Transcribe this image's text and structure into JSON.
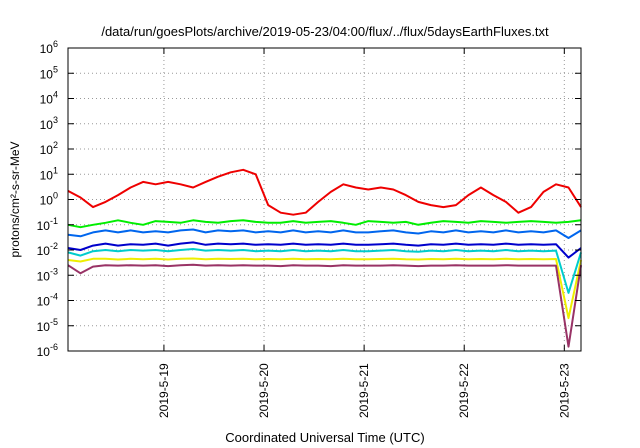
{
  "chart_data": {
    "type": "line",
    "title": "/data/run/goesPlots/archive/2019-05-23/04:00/flux/../flux/5daysEarthFluxes.txt",
    "ylabel": "protons/cm²-s-sr-MeV",
    "xlabel": "Coordinated Universal Time (UTC)",
    "y_scale": "log",
    "ylim": [
      1e-06,
      1000000.0
    ],
    "xlim": [
      "2019-05-18T01:00",
      "2019-05-23T04:00"
    ],
    "yticks": [
      {
        "value": 1e-06,
        "base": "10",
        "exp": "-6"
      },
      {
        "value": 1e-05,
        "base": "10",
        "exp": "-5"
      },
      {
        "value": 0.0001,
        "base": "10",
        "exp": "-4"
      },
      {
        "value": 0.001,
        "base": "10",
        "exp": "-3"
      },
      {
        "value": 0.01,
        "base": "10",
        "exp": "-2"
      },
      {
        "value": 0.1,
        "base": "10",
        "exp": "-1"
      },
      {
        "value": 1,
        "base": "10",
        "exp": "0"
      },
      {
        "value": 10.0,
        "base": "10",
        "exp": "1"
      },
      {
        "value": 100.0,
        "base": "10",
        "exp": "2"
      },
      {
        "value": 1000.0,
        "base": "10",
        "exp": "3"
      },
      {
        "value": 10000.0,
        "base": "10",
        "exp": "4"
      },
      {
        "value": 100000.0,
        "base": "10",
        "exp": "5"
      },
      {
        "value": 1000000.0,
        "base": "10",
        "exp": "6"
      }
    ],
    "xticks": [
      {
        "value": "2019-05-19T00:00",
        "label": "2019-5-19"
      },
      {
        "value": "2019-05-20T00:00",
        "label": "2019-5-20"
      },
      {
        "value": "2019-05-21T00:00",
        "label": "2019-5-21"
      },
      {
        "value": "2019-05-22T00:00",
        "label": "2019-5-22"
      },
      {
        "value": "2019-05-23T00:00",
        "label": "2019-5-23"
      }
    ],
    "grid": true,
    "legend": "none",
    "x": [
      "2019-05-18T01:00",
      "2019-05-18T04:00",
      "2019-05-18T07:00",
      "2019-05-18T10:00",
      "2019-05-18T13:00",
      "2019-05-18T16:00",
      "2019-05-18T19:00",
      "2019-05-18T22:00",
      "2019-05-19T01:00",
      "2019-05-19T04:00",
      "2019-05-19T07:00",
      "2019-05-19T10:00",
      "2019-05-19T13:00",
      "2019-05-19T16:00",
      "2019-05-19T19:00",
      "2019-05-19T22:00",
      "2019-05-20T01:00",
      "2019-05-20T04:00",
      "2019-05-20T07:00",
      "2019-05-20T10:00",
      "2019-05-20T13:00",
      "2019-05-20T16:00",
      "2019-05-20T19:00",
      "2019-05-20T22:00",
      "2019-05-21T01:00",
      "2019-05-21T04:00",
      "2019-05-21T07:00",
      "2019-05-21T10:00",
      "2019-05-21T13:00",
      "2019-05-21T16:00",
      "2019-05-21T19:00",
      "2019-05-21T22:00",
      "2019-05-22T01:00",
      "2019-05-22T04:00",
      "2019-05-22T07:00",
      "2019-05-22T10:00",
      "2019-05-22T13:00",
      "2019-05-22T16:00",
      "2019-05-22T19:00",
      "2019-05-22T22:00",
      "2019-05-23T01:00",
      "2019-05-23T04:00"
    ],
    "series": [
      {
        "color": "#ee0000",
        "values": [
          2.2,
          1.2,
          0.5,
          0.8,
          1.5,
          3,
          5,
          4,
          5,
          4,
          3,
          5,
          8,
          12,
          15,
          10,
          0.6,
          0.3,
          0.25,
          0.3,
          0.8,
          2,
          4,
          3,
          2.5,
          3,
          2.5,
          1.5,
          0.8,
          0.6,
          0.5,
          0.6,
          1.5,
          3,
          1.5,
          0.8,
          0.3,
          0.5,
          2,
          4,
          3,
          0.5
        ]
      },
      {
        "color": "#00ee00",
        "values": [
          0.1,
          0.08,
          0.1,
          0.12,
          0.15,
          0.12,
          0.1,
          0.14,
          0.13,
          0.12,
          0.15,
          0.13,
          0.12,
          0.14,
          0.15,
          0.13,
          0.12,
          0.12,
          0.14,
          0.12,
          0.13,
          0.14,
          0.12,
          0.1,
          0.14,
          0.13,
          0.12,
          0.13,
          0.1,
          0.12,
          0.14,
          0.13,
          0.12,
          0.14,
          0.13,
          0.12,
          0.13,
          0.14,
          0.13,
          0.12,
          0.13,
          0.15
        ]
      },
      {
        "color": "#0066ee",
        "values": [
          0.04,
          0.035,
          0.05,
          0.06,
          0.05,
          0.06,
          0.05,
          0.055,
          0.05,
          0.06,
          0.065,
          0.05,
          0.06,
          0.055,
          0.06,
          0.05,
          0.055,
          0.05,
          0.06,
          0.05,
          0.055,
          0.05,
          0.06,
          0.05,
          0.05,
          0.055,
          0.06,
          0.05,
          0.045,
          0.055,
          0.05,
          0.06,
          0.05,
          0.055,
          0.05,
          0.06,
          0.05,
          0.055,
          0.05,
          0.06,
          0.03,
          0.06
        ]
      },
      {
        "color": "#0000cc",
        "values": [
          0.012,
          0.01,
          0.015,
          0.018,
          0.015,
          0.017,
          0.016,
          0.018,
          0.015,
          0.018,
          0.02,
          0.016,
          0.018,
          0.017,
          0.018,
          0.016,
          0.017,
          0.016,
          0.018,
          0.016,
          0.017,
          0.016,
          0.018,
          0.016,
          0.016,
          0.017,
          0.018,
          0.016,
          0.015,
          0.017,
          0.016,
          0.018,
          0.016,
          0.017,
          0.016,
          0.018,
          0.016,
          0.017,
          0.016,
          0.017,
          0.005,
          0.012
        ]
      },
      {
        "color": "#00cccc",
        "values": [
          0.008,
          0.006,
          0.009,
          0.01,
          0.009,
          0.01,
          0.0095,
          0.01,
          0.009,
          0.01,
          0.011,
          0.0095,
          0.01,
          0.0095,
          0.01,
          0.009,
          0.0095,
          0.009,
          0.01,
          0.009,
          0.0095,
          0.009,
          0.01,
          0.009,
          0.009,
          0.0095,
          0.01,
          0.009,
          0.0085,
          0.0095,
          0.009,
          0.01,
          0.009,
          0.0095,
          0.009,
          0.01,
          0.009,
          0.0095,
          0.009,
          0.0095,
          0.0002,
          0.008
        ]
      },
      {
        "color": "#eeee00",
        "values": [
          0.004,
          0.0035,
          0.0045,
          0.0045,
          0.0042,
          0.0045,
          0.0043,
          0.0045,
          0.0042,
          0.0045,
          0.0046,
          0.0043,
          0.0045,
          0.0044,
          0.0045,
          0.0043,
          0.0044,
          0.0043,
          0.0045,
          0.0043,
          0.0044,
          0.0043,
          0.0045,
          0.0043,
          0.0043,
          0.0044,
          0.0045,
          0.0043,
          0.0042,
          0.0044,
          0.0043,
          0.0045,
          0.0043,
          0.0044,
          0.0043,
          0.0045,
          0.0043,
          0.0044,
          0.0043,
          0.0044,
          2e-05,
          0.004
        ]
      },
      {
        "color": "#993366",
        "values": [
          0.0025,
          0.0012,
          0.0022,
          0.0025,
          0.0024,
          0.0025,
          0.0024,
          0.0025,
          0.0023,
          0.0025,
          0.0026,
          0.0024,
          0.0025,
          0.0024,
          0.0025,
          0.0024,
          0.0024,
          0.0023,
          0.0025,
          0.0024,
          0.0024,
          0.0023,
          0.0025,
          0.0024,
          0.0024,
          0.0024,
          0.0025,
          0.0024,
          0.0023,
          0.0024,
          0.0024,
          0.0025,
          0.0024,
          0.0024,
          0.0024,
          0.0025,
          0.0024,
          0.0024,
          0.0024,
          0.0024,
          1.5e-06,
          0.0025
        ]
      }
    ]
  }
}
